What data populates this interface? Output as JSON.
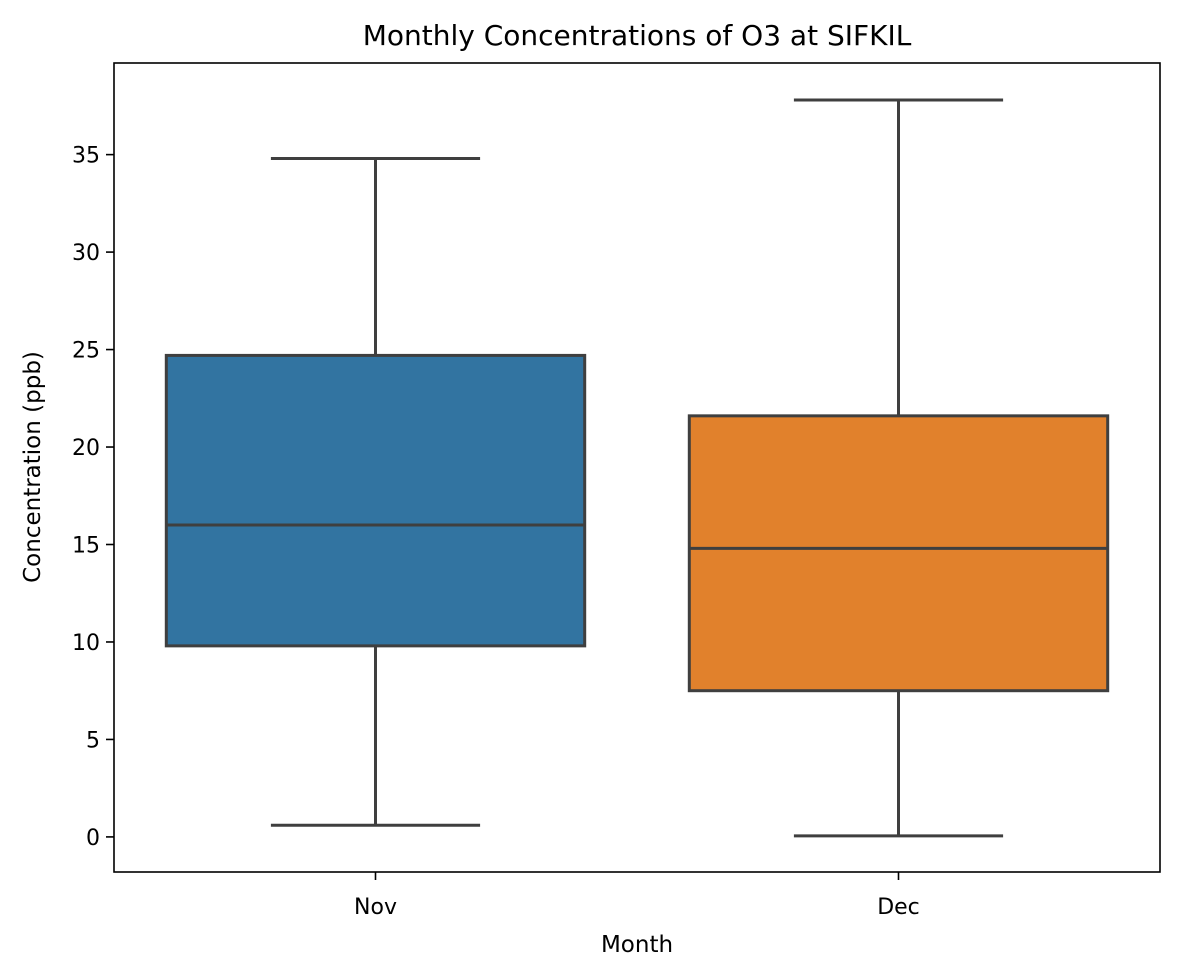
{
  "chart_data": {
    "type": "box",
    "title": "Monthly Concentrations of O3 at SIFKIL",
    "xlabel": "Month",
    "ylabel": "Concentration (ppb)",
    "categories": [
      "Nov",
      "Dec"
    ],
    "boxes": [
      {
        "category": "Nov",
        "whisker_low": 0.6,
        "q1": 9.8,
        "median": 16.0,
        "q3": 24.7,
        "whisker_high": 34.8,
        "color": "#3274a1"
      },
      {
        "category": "Dec",
        "whisker_low": 0.05,
        "q1": 7.5,
        "median": 14.8,
        "q3": 21.6,
        "whisker_high": 37.8,
        "color": "#e1812c"
      }
    ],
    "ylim": [
      -1.8,
      39.7
    ],
    "yticks": [
      0,
      5,
      10,
      15,
      20,
      25,
      30,
      35
    ],
    "grid": false,
    "legend": "none"
  }
}
